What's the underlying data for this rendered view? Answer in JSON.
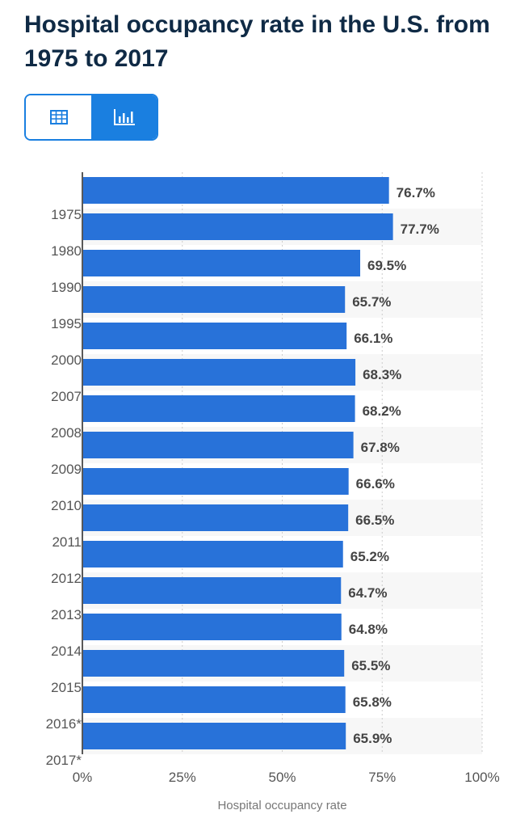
{
  "title": "Hospital occupancy rate in the U.S. from 1975 to 2017",
  "toggle": {
    "table_icon": "table-icon",
    "chart_icon": "bar-chart-icon",
    "active": "chart"
  },
  "colors": {
    "bar": "#2872d9",
    "accent": "#1a7fe0",
    "title": "#0f2a45"
  },
  "chart_data": {
    "type": "bar",
    "orientation": "horizontal",
    "title": "Hospital occupancy rate in the U.S. from 1975 to 2017",
    "categories": [
      "1975",
      "1980",
      "1990",
      "1995",
      "2000",
      "2007",
      "2008",
      "2009",
      "2010",
      "2011",
      "2012",
      "2013",
      "2014",
      "2015",
      "2016*",
      "2017*"
    ],
    "values": [
      76.7,
      77.7,
      69.5,
      65.7,
      66.1,
      68.3,
      68.2,
      67.8,
      66.6,
      66.5,
      65.2,
      64.7,
      64.8,
      65.5,
      65.8,
      65.9
    ],
    "value_labels": [
      "76.7%",
      "77.7%",
      "69.5%",
      "65.7%",
      "66.1%",
      "68.3%",
      "68.2%",
      "67.8%",
      "66.6%",
      "66.5%",
      "65.2%",
      "64.7%",
      "64.8%",
      "65.5%",
      "65.8%",
      "65.9%"
    ],
    "xlabel": "Hospital occupancy rate",
    "ylabel": "",
    "xlim": [
      0,
      100
    ],
    "xticks": [
      "0%",
      "25%",
      "50%",
      "75%",
      "100%"
    ],
    "grid": true
  }
}
